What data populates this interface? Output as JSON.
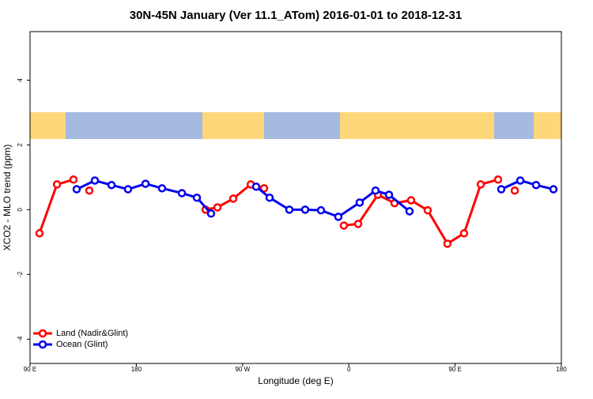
{
  "chart_data": {
    "type": "line",
    "title": "30N-45N January (Ver 11.1_ATom)   2016-01-01 to 2018-12-31",
    "x_label": "Longitude (deg E)",
    "y_label": "XCO2 - MLO trend (ppm)",
    "xlim": [
      90,
      540
    ],
    "ylim": [
      -4.75,
      5.5
    ],
    "xticks": [
      {
        "value": 90,
        "label": "90 E"
      },
      180,
      {
        "value": 270,
        "label": "90 W"
      },
      {
        "value": 360,
        "label": "0"
      },
      {
        "value": 450,
        "label": "90 E"
      },
      {
        "value": 540,
        "label": "180"
      }
    ],
    "yticks": [
      -4,
      -2,
      0,
      2,
      4
    ],
    "legend": "bottomleft",
    "series": [
      {
        "name": "Land (Nadir&Glint)",
        "color": "#ff0000",
        "x": [
          98.0,
          112.8,
          126.8,
          null,
          140.2,
          null,
          238.7,
          248.7,
          262.1,
          276.9,
          288.2,
          null,
          355.8,
          367.9,
          384.6,
          398.7,
          412.7,
          426.8,
          443.5,
          457.6,
          471.7,
          486.4,
          null,
          500.5
        ],
        "values": [
          -0.73,
          0.78,
          0.93,
          null,
          0.59,
          null,
          0,
          0.07,
          0.34,
          0.78,
          0.66,
          null,
          -0.49,
          -0.44,
          0.46,
          0.2,
          0.29,
          -0.02,
          -1.05,
          -0.73,
          0.78,
          0.93,
          null,
          0.59
        ]
      },
      {
        "name": "Ocean (Glint)",
        "color": "#0000ee",
        "x": [
          129.5,
          144.9,
          159.0,
          173.0,
          187.8,
          201.8,
          218.6,
          231.3,
          243.3,
          null,
          281.5,
          292.9,
          309.6,
          323.0,
          336.4,
          351.1,
          369.2,
          382.6,
          394.0,
          411.4,
          null,
          489.1,
          505.2,
          518.6,
          533.3
        ],
        "values": [
          0.63,
          0.9,
          0.76,
          0.63,
          0.8,
          0.66,
          0.51,
          0.37,
          -0.12,
          null,
          0.71,
          0.37,
          0,
          0,
          -0.02,
          -0.22,
          0.22,
          0.59,
          0.46,
          -0.05,
          null,
          0.63,
          0.9,
          0.76,
          0.63
        ]
      }
    ]
  }
}
